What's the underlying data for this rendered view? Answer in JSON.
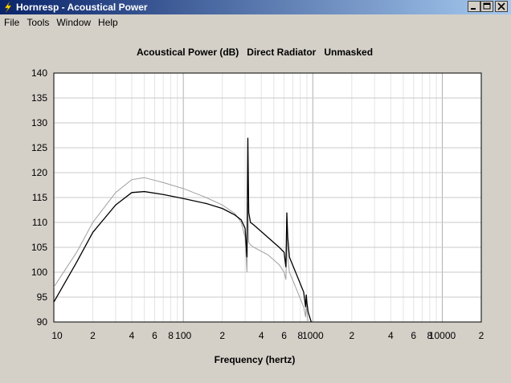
{
  "window": {
    "title": "Hornresp - Acoustical Power"
  },
  "menu": [
    "File",
    "Tools",
    "Window",
    "Help"
  ],
  "chart_data": {
    "type": "line",
    "title": "Acoustical Power (dB)   Direct Radiator   Unmasked",
    "xlabel": "Frequency (hertz)",
    "xscale": "log",
    "x": [
      10,
      15,
      20,
      30,
      40,
      50,
      70,
      100,
      150,
      200,
      250,
      280,
      300,
      310,
      315,
      320,
      330,
      350,
      450,
      550,
      600,
      620,
      630,
      640,
      660,
      750,
      850,
      880,
      890,
      900,
      920,
      1000
    ],
    "series": [
      {
        "color": "#a0a0a0",
        "values": [
          97,
          104,
          110,
          116,
          118.6,
          119,
          118,
          116.8,
          115,
          113.5,
          111.8,
          110,
          107,
          100,
          114,
          106,
          105.5,
          105,
          103.5,
          101.5,
          100,
          98.5,
          108,
          103,
          100,
          96.5,
          93,
          91,
          94,
          92,
          90,
          88
        ]
      },
      {
        "color": "#000000",
        "values": [
          94,
          102,
          108,
          113.5,
          116,
          116.2,
          115.6,
          114.8,
          113.8,
          112.8,
          111.5,
          110.5,
          108.8,
          103,
          127,
          112,
          110,
          109.5,
          107,
          105,
          104,
          101,
          112,
          107,
          103,
          99.5,
          96,
          93,
          95.5,
          94,
          92,
          89
        ]
      }
    ],
    "xlim": [
      10,
      20000
    ],
    "xticks": [
      10,
      {
        "value": 20,
        "label": "2"
      },
      {
        "value": 40,
        "label": "4"
      },
      {
        "value": 60,
        "label": "6"
      },
      {
        "value": 80,
        "label": "8"
      },
      100,
      {
        "value": 200,
        "label": "2"
      },
      {
        "value": 400,
        "label": "4"
      },
      {
        "value": 600,
        "label": "6"
      },
      {
        "value": 800,
        "label": "8"
      },
      1000,
      {
        "value": 2000,
        "label": "2"
      },
      {
        "value": 4000,
        "label": "4"
      },
      {
        "value": 6000,
        "label": "6"
      },
      {
        "value": 8000,
        "label": "8"
      },
      10000,
      {
        "value": 20000,
        "label": "2"
      }
    ],
    "x_minor_grid": [
      30,
      50,
      70,
      90,
      300,
      500,
      700,
      900,
      3000,
      5000,
      7000,
      9000
    ],
    "ylim": [
      90,
      140
    ],
    "yticks": [
      90,
      95,
      100,
      105,
      110,
      115,
      120,
      125,
      130,
      135,
      140
    ],
    "grid": true
  }
}
